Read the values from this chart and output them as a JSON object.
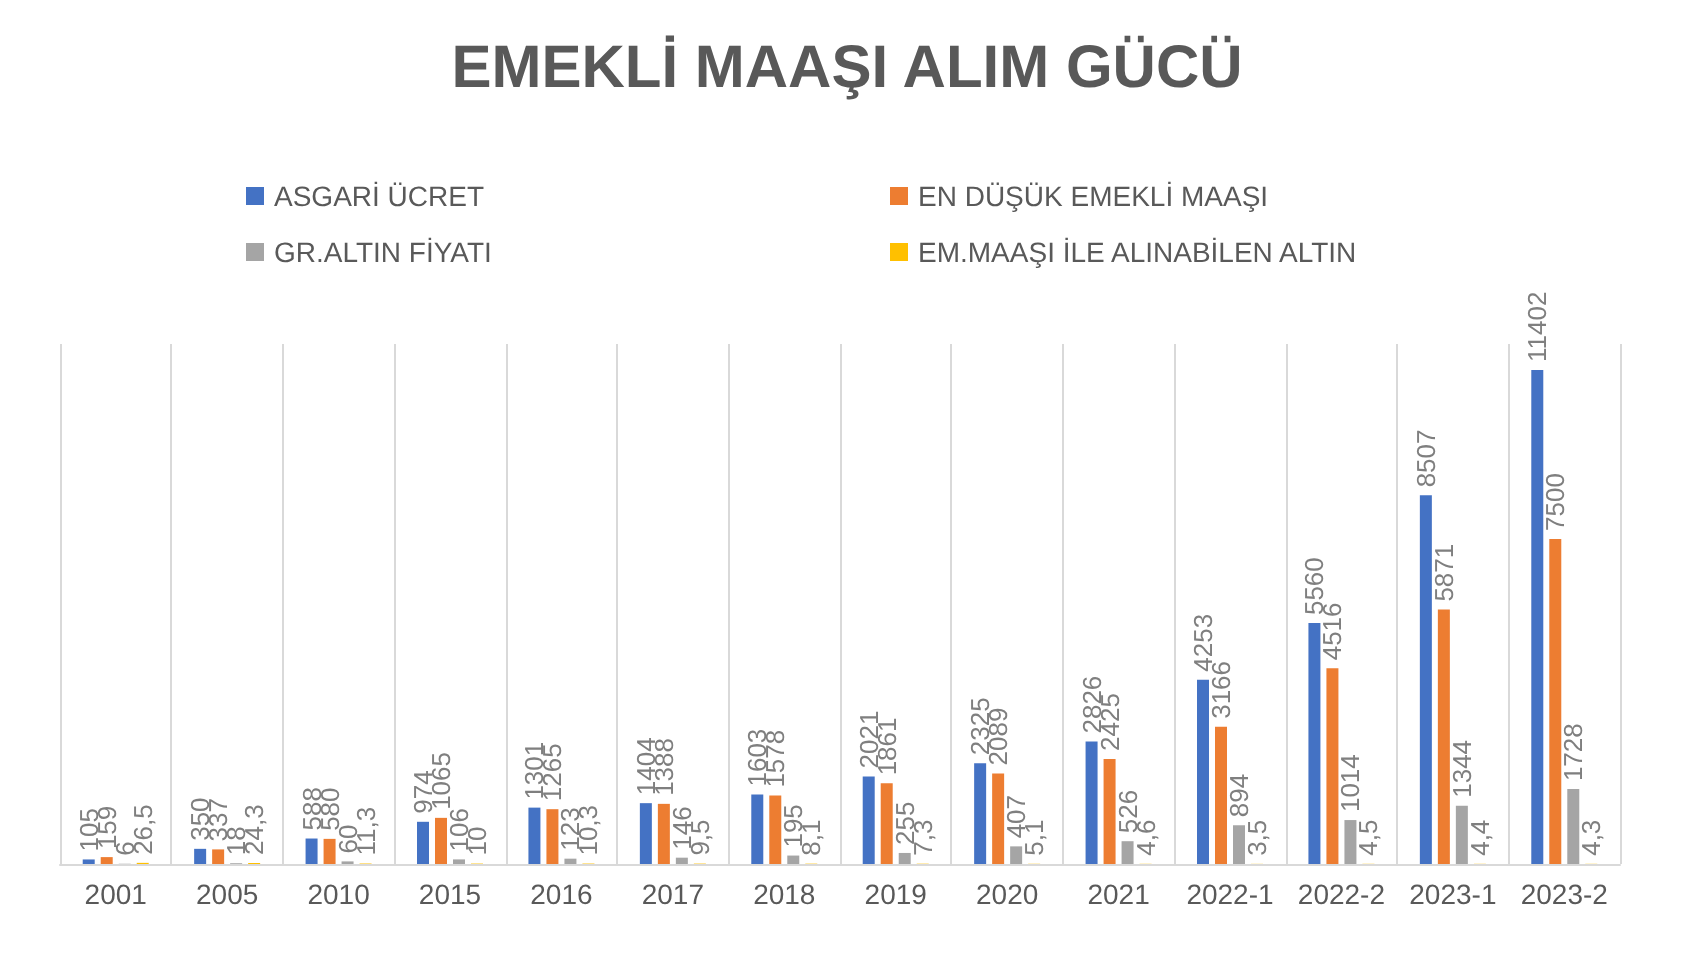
{
  "chart_data": {
    "type": "bar",
    "title": "EMEKLİ MAAŞI ALIM GÜCÜ",
    "categories": [
      "2001",
      "2005",
      "2010",
      "2015",
      "2016",
      "2017",
      "2018",
      "2019",
      "2020",
      "2021",
      "2022-1",
      "2022-2",
      "2023-1",
      "2023-2"
    ],
    "series": [
      {
        "name": "ASGARİ ÜCRET",
        "color": "#4472c4",
        "values": [
          105,
          350,
          588,
          974,
          1301,
          1404,
          1603,
          2021,
          2325,
          2826,
          4253,
          5560,
          8507,
          11402
        ],
        "value_labels": [
          "105",
          "350",
          "588",
          "974",
          "1301",
          "1404",
          "1603",
          "2021",
          "2325",
          "2826",
          "4253",
          "5560",
          "8507",
          "11402"
        ]
      },
      {
        "name": "EN DÜŞÜK EMEKLİ MAAŞI",
        "color": "#ed7d31",
        "values": [
          159,
          337,
          580,
          1065,
          1265,
          1388,
          1578,
          1861,
          2089,
          2425,
          3166,
          4516,
          5871,
          7500
        ],
        "value_labels": [
          "159",
          "337",
          "580",
          "1065",
          "1265",
          "1388",
          "1578",
          "1861",
          "2089",
          "2425",
          "3166",
          "4516",
          "5871",
          "7500"
        ]
      },
      {
        "name": "GR.ALTIN FİYATI",
        "color": "#a5a5a5",
        "values": [
          6,
          18,
          60,
          106,
          123,
          146,
          195,
          255,
          407,
          526,
          894,
          1014,
          1344,
          1728
        ],
        "value_labels": [
          "6",
          "18",
          "60",
          "106",
          "123",
          "146",
          "195",
          "255",
          "407",
          "526",
          "894",
          "1014",
          "1344",
          "1728"
        ]
      },
      {
        "name": "EM.MAAŞI İLE ALINABİLEN ALTIN",
        "color": "#ffc000",
        "values": [
          26.5,
          24.3,
          11.3,
          10,
          10.3,
          9.5,
          8.1,
          7.3,
          5.1,
          4.6,
          3.5,
          4.5,
          4.4,
          4.3
        ],
        "value_labels": [
          "26,5",
          "24,3",
          "11,3",
          "10",
          "10,3",
          "9,5",
          "8,1",
          "7,3",
          "5,1",
          "4,6",
          "3,5",
          "4,5",
          "4,4",
          "4,3"
        ]
      }
    ],
    "grid": "x",
    "legend": "top"
  }
}
